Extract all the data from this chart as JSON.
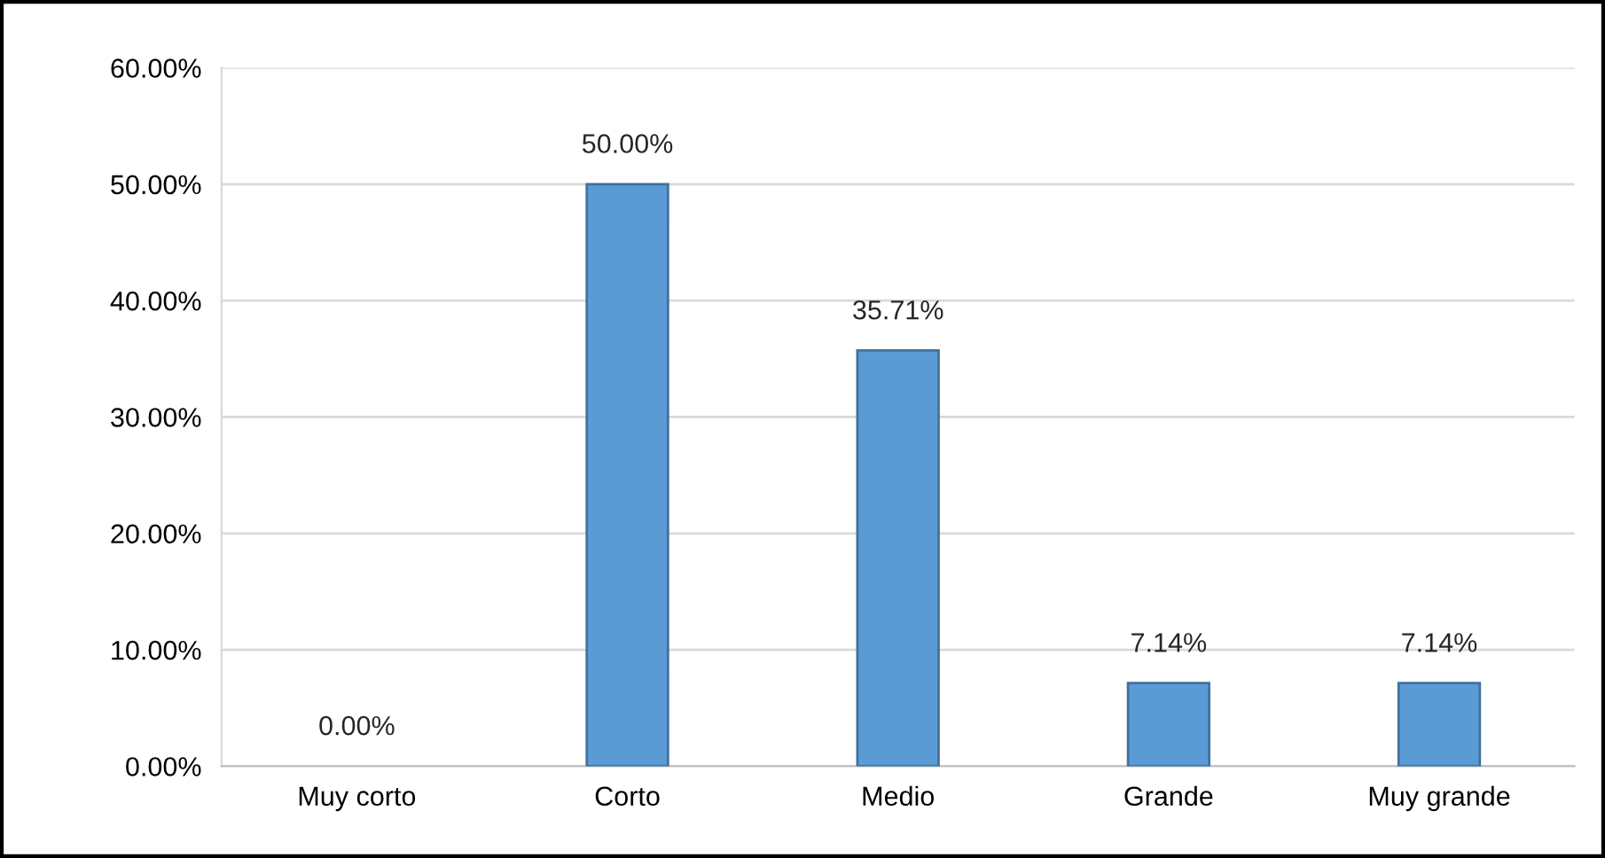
{
  "chart_data": {
    "type": "bar",
    "categories": [
      "Muy corto",
      "Corto",
      "Medio",
      "Grande",
      "Muy grande"
    ],
    "values": [
      0,
      50,
      35.71,
      7.14,
      7.14
    ],
    "value_labels": [
      "0.00%",
      "50.00%",
      "35.71%",
      "7.14%",
      "7.14%"
    ],
    "color": "#5b9bd5",
    "ylim": [
      0,
      60
    ],
    "yticks": [
      {
        "value": 0,
        "label": "0.00%"
      },
      {
        "value": 10,
        "label": "10.00%"
      },
      {
        "value": 20,
        "label": "20.00%"
      },
      {
        "value": 30,
        "label": "30.00%"
      },
      {
        "value": 40,
        "label": "40.00%"
      },
      {
        "value": 50,
        "label": "50.00%"
      },
      {
        "value": 60,
        "label": "60.00%"
      }
    ],
    "grid": "y",
    "legend": false
  }
}
